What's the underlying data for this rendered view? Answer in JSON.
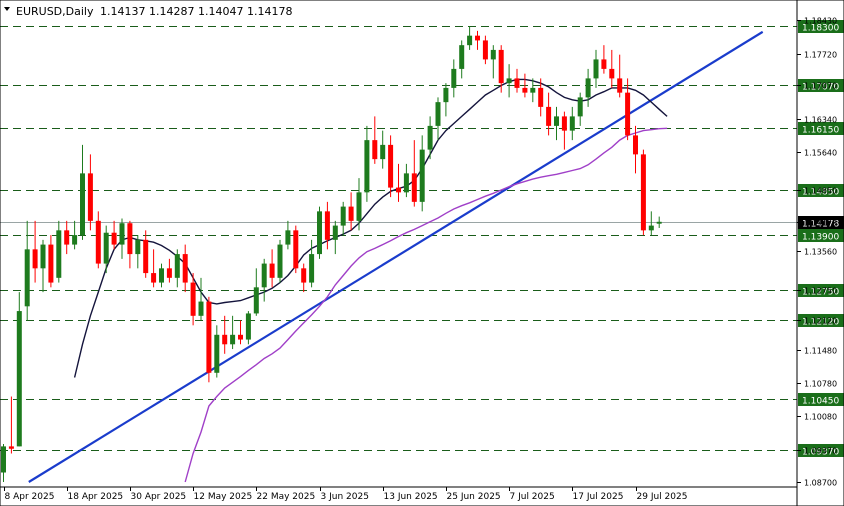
{
  "header": {
    "symbol": "EURUSD,Daily",
    "ohlc": "1.14137 1.14287 1.14047 1.14178"
  },
  "colors": {
    "bull": "#1e7b1e",
    "bear": "#ff0000",
    "grid": "#1a5c1a",
    "fast_ma": "#14143c",
    "slow_ma": "#a040c8",
    "trendline": "#1a3ccc",
    "level_bg": "#1a6e1a",
    "current_bg": "#000000"
  },
  "chart_data": {
    "type": "candlestick",
    "y_range": [
      1.087,
      1.1843
    ],
    "y_ticks": [
      "1.18430",
      "1.17720",
      "1.17070",
      "1.16340",
      "1.15640",
      "1.14850",
      "1.14178",
      "1.13560",
      "1.12750",
      "1.12120",
      "1.11480",
      "1.10780",
      "1.10080",
      "1.09370",
      "1.08700"
    ],
    "levels": [
      {
        "price": 1.183,
        "label": "1.18300"
      },
      {
        "price": 1.1707,
        "label": "1.17070"
      },
      {
        "price": 1.1615,
        "label": "1.16150"
      },
      {
        "price": 1.1485,
        "label": "1.14850"
      },
      {
        "price": 1.139,
        "label": "1.13900"
      },
      {
        "price": 1.1275,
        "label": "1.12750"
      },
      {
        "price": 1.1212,
        "label": "1.12120"
      },
      {
        "price": 1.1045,
        "label": "1.10450"
      },
      {
        "price": 1.0937,
        "label": "1.09370"
      }
    ],
    "current_price": {
      "price": 1.14178,
      "label": "1.14178"
    },
    "x_labels": [
      "8 Apr 2025",
      "18 Apr 2025",
      "30 Apr 2025",
      "12 May 2025",
      "22 May 2025",
      "3 Jun 2025",
      "13 Jun 2025",
      "25 Jun 2025",
      "7 Jul 2025",
      "17 Jul 2025",
      "29 Jul 2025"
    ],
    "x_label_bars": [
      0,
      8,
      16,
      24,
      32,
      40,
      48,
      56,
      64,
      72,
      80
    ],
    "candles": [
      {
        "o": 1.089,
        "h": 1.095,
        "l": 1.087,
        "c": 1.0945
      },
      {
        "o": 1.0945,
        "h": 1.105,
        "l": 1.093,
        "c": 1.094
      },
      {
        "o": 1.0945,
        "h": 1.127,
        "l": 1.0945,
        "c": 1.123
      },
      {
        "o": 1.124,
        "h": 1.142,
        "l": 1.121,
        "c": 1.136
      },
      {
        "o": 1.136,
        "h": 1.142,
        "l": 1.129,
        "c": 1.132
      },
      {
        "o": 1.132,
        "h": 1.138,
        "l": 1.127,
        "c": 1.137
      },
      {
        "o": 1.137,
        "h": 1.139,
        "l": 1.128,
        "c": 1.129
      },
      {
        "o": 1.13,
        "h": 1.142,
        "l": 1.129,
        "c": 1.14
      },
      {
        "o": 1.14,
        "h": 1.142,
        "l": 1.135,
        "c": 1.137
      },
      {
        "o": 1.137,
        "h": 1.142,
        "l": 1.136,
        "c": 1.139
      },
      {
        "o": 1.139,
        "h": 1.158,
        "l": 1.138,
        "c": 1.152
      },
      {
        "o": 1.152,
        "h": 1.156,
        "l": 1.14,
        "c": 1.142
      },
      {
        "o": 1.142,
        "h": 1.144,
        "l": 1.132,
        "c": 1.133
      },
      {
        "o": 1.133,
        "h": 1.141,
        "l": 1.131,
        "c": 1.1395
      },
      {
        "o": 1.1395,
        "h": 1.142,
        "l": 1.136,
        "c": 1.137
      },
      {
        "o": 1.137,
        "h": 1.1425,
        "l": 1.134,
        "c": 1.1415
      },
      {
        "o": 1.1415,
        "h": 1.142,
        "l": 1.132,
        "c": 1.135
      },
      {
        "o": 1.135,
        "h": 1.139,
        "l": 1.132,
        "c": 1.138
      },
      {
        "o": 1.138,
        "h": 1.14,
        "l": 1.13,
        "c": 1.131
      },
      {
        "o": 1.131,
        "h": 1.136,
        "l": 1.128,
        "c": 1.129
      },
      {
        "o": 1.129,
        "h": 1.133,
        "l": 1.128,
        "c": 1.132
      },
      {
        "o": 1.132,
        "h": 1.134,
        "l": 1.129,
        "c": 1.13
      },
      {
        "o": 1.13,
        "h": 1.136,
        "l": 1.128,
        "c": 1.135
      },
      {
        "o": 1.135,
        "h": 1.137,
        "l": 1.127,
        "c": 1.129
      },
      {
        "o": 1.129,
        "h": 1.131,
        "l": 1.12,
        "c": 1.122
      },
      {
        "o": 1.122,
        "h": 1.13,
        "l": 1.121,
        "c": 1.125
      },
      {
        "o": 1.125,
        "h": 1.126,
        "l": 1.108,
        "c": 1.11
      },
      {
        "o": 1.11,
        "h": 1.12,
        "l": 1.109,
        "c": 1.118
      },
      {
        "o": 1.118,
        "h": 1.122,
        "l": 1.114,
        "c": 1.116
      },
      {
        "o": 1.116,
        "h": 1.122,
        "l": 1.115,
        "c": 1.118
      },
      {
        "o": 1.118,
        "h": 1.121,
        "l": 1.116,
        "c": 1.117
      },
      {
        "o": 1.117,
        "h": 1.123,
        "l": 1.116,
        "c": 1.1225
      },
      {
        "o": 1.1225,
        "h": 1.132,
        "l": 1.122,
        "c": 1.128
      },
      {
        "o": 1.128,
        "h": 1.134,
        "l": 1.125,
        "c": 1.133
      },
      {
        "o": 1.133,
        "h": 1.136,
        "l": 1.128,
        "c": 1.13
      },
      {
        "o": 1.13,
        "h": 1.138,
        "l": 1.129,
        "c": 1.137
      },
      {
        "o": 1.137,
        "h": 1.142,
        "l": 1.136,
        "c": 1.14
      },
      {
        "o": 1.14,
        "h": 1.141,
        "l": 1.131,
        "c": 1.132
      },
      {
        "o": 1.132,
        "h": 1.133,
        "l": 1.127,
        "c": 1.129
      },
      {
        "o": 1.129,
        "h": 1.138,
        "l": 1.128,
        "c": 1.135
      },
      {
        "o": 1.135,
        "h": 1.145,
        "l": 1.134,
        "c": 1.144
      },
      {
        "o": 1.144,
        "h": 1.146,
        "l": 1.136,
        "c": 1.138
      },
      {
        "o": 1.138,
        "h": 1.142,
        "l": 1.135,
        "c": 1.141
      },
      {
        "o": 1.141,
        "h": 1.146,
        "l": 1.139,
        "c": 1.145
      },
      {
        "o": 1.145,
        "h": 1.148,
        "l": 1.14,
        "c": 1.142
      },
      {
        "o": 1.142,
        "h": 1.151,
        "l": 1.14,
        "c": 1.148
      },
      {
        "o": 1.148,
        "h": 1.162,
        "l": 1.146,
        "c": 1.159
      },
      {
        "o": 1.159,
        "h": 1.164,
        "l": 1.154,
        "c": 1.155
      },
      {
        "o": 1.155,
        "h": 1.161,
        "l": 1.153,
        "c": 1.158
      },
      {
        "o": 1.158,
        "h": 1.16,
        "l": 1.147,
        "c": 1.149
      },
      {
        "o": 1.149,
        "h": 1.154,
        "l": 1.146,
        "c": 1.148
      },
      {
        "o": 1.148,
        "h": 1.154,
        "l": 1.147,
        "c": 1.152
      },
      {
        "o": 1.152,
        "h": 1.159,
        "l": 1.145,
        "c": 1.146
      },
      {
        "o": 1.146,
        "h": 1.16,
        "l": 1.144,
        "c": 1.157
      },
      {
        "o": 1.157,
        "h": 1.164,
        "l": 1.155,
        "c": 1.162
      },
      {
        "o": 1.162,
        "h": 1.168,
        "l": 1.159,
        "c": 1.167
      },
      {
        "o": 1.167,
        "h": 1.171,
        "l": 1.164,
        "c": 1.17
      },
      {
        "o": 1.17,
        "h": 1.176,
        "l": 1.168,
        "c": 1.174
      },
      {
        "o": 1.174,
        "h": 1.18,
        "l": 1.172,
        "c": 1.179
      },
      {
        "o": 1.179,
        "h": 1.183,
        "l": 1.178,
        "c": 1.181
      },
      {
        "o": 1.181,
        "h": 1.182,
        "l": 1.178,
        "c": 1.18
      },
      {
        "o": 1.18,
        "h": 1.181,
        "l": 1.175,
        "c": 1.176
      },
      {
        "o": 1.176,
        "h": 1.179,
        "l": 1.172,
        "c": 1.178
      },
      {
        "o": 1.178,
        "h": 1.179,
        "l": 1.169,
        "c": 1.171
      },
      {
        "o": 1.171,
        "h": 1.175,
        "l": 1.168,
        "c": 1.172
      },
      {
        "o": 1.172,
        "h": 1.174,
        "l": 1.169,
        "c": 1.17
      },
      {
        "o": 1.17,
        "h": 1.173,
        "l": 1.168,
        "c": 1.169
      },
      {
        "o": 1.169,
        "h": 1.172,
        "l": 1.167,
        "c": 1.17
      },
      {
        "o": 1.17,
        "h": 1.172,
        "l": 1.164,
        "c": 1.166
      },
      {
        "o": 1.166,
        "h": 1.169,
        "l": 1.16,
        "c": 1.162
      },
      {
        "o": 1.162,
        "h": 1.166,
        "l": 1.159,
        "c": 1.164
      },
      {
        "o": 1.164,
        "h": 1.165,
        "l": 1.157,
        "c": 1.161
      },
      {
        "o": 1.161,
        "h": 1.166,
        "l": 1.159,
        "c": 1.164
      },
      {
        "o": 1.164,
        "h": 1.169,
        "l": 1.162,
        "c": 1.168
      },
      {
        "o": 1.168,
        "h": 1.174,
        "l": 1.166,
        "c": 1.172
      },
      {
        "o": 1.172,
        "h": 1.178,
        "l": 1.17,
        "c": 1.176
      },
      {
        "o": 1.176,
        "h": 1.179,
        "l": 1.173,
        "c": 1.174
      },
      {
        "o": 1.174,
        "h": 1.178,
        "l": 1.17,
        "c": 1.172
      },
      {
        "o": 1.172,
        "h": 1.177,
        "l": 1.168,
        "c": 1.169
      },
      {
        "o": 1.169,
        "h": 1.172,
        "l": 1.159,
        "c": 1.16
      },
      {
        "o": 1.16,
        "h": 1.162,
        "l": 1.152,
        "c": 1.156
      },
      {
        "o": 1.156,
        "h": 1.157,
        "l": 1.139,
        "c": 1.14
      },
      {
        "o": 1.14,
        "h": 1.144,
        "l": 1.139,
        "c": 1.141
      },
      {
        "o": 1.1414,
        "h": 1.1429,
        "l": 1.1405,
        "c": 1.1418
      }
    ],
    "fast_ma": {
      "period": 10,
      "values": [
        null,
        null,
        null,
        null,
        null,
        null,
        null,
        null,
        null,
        1.109,
        1.116,
        1.122,
        1.127,
        1.132,
        1.136,
        1.138,
        1.1385,
        1.138,
        1.1378,
        1.1375,
        1.1368,
        1.1358,
        1.1345,
        1.133,
        1.13,
        1.127,
        1.1248,
        1.1245,
        1.1248,
        1.125,
        1.1252,
        1.1258,
        1.1264,
        1.127,
        1.1278,
        1.129,
        1.1305,
        1.1325,
        1.1348,
        1.1362,
        1.137,
        1.1378,
        1.1385,
        1.1392,
        1.14,
        1.1415,
        1.1435,
        1.1455,
        1.147,
        1.1482,
        1.1488,
        1.1493,
        1.1505,
        1.153,
        1.156,
        1.159,
        1.161,
        1.1625,
        1.164,
        1.1655,
        1.167,
        1.1685,
        1.1695,
        1.1705,
        1.1713,
        1.1718,
        1.1718,
        1.1715,
        1.171,
        1.1702,
        1.169,
        1.168,
        1.1675,
        1.1672,
        1.1675,
        1.1685,
        1.1692,
        1.17,
        1.17,
        1.17,
        1.1695,
        1.1685,
        1.167,
        1.1655,
        1.164
      ]
    },
    "slow_ma": {
      "period": 50,
      "values": [
        null,
        null,
        null,
        null,
        null,
        null,
        null,
        null,
        null,
        null,
        null,
        null,
        null,
        null,
        null,
        null,
        null,
        null,
        null,
        null,
        null,
        null,
        null,
        1.087,
        1.093,
        1.0975,
        1.103,
        1.105,
        1.1068,
        1.108,
        1.1092,
        1.1105,
        1.1117,
        1.113,
        1.114,
        1.1152,
        1.117,
        1.1188,
        1.1205,
        1.1222,
        1.124,
        1.126,
        1.1285,
        1.1305,
        1.1325,
        1.1342,
        1.1355,
        1.1362,
        1.137,
        1.1378,
        1.1387,
        1.1395,
        1.1402,
        1.141,
        1.1418,
        1.1426,
        1.1436,
        1.1445,
        1.1452,
        1.1458,
        1.1465,
        1.1472,
        1.1478,
        1.1485,
        1.1492,
        1.1498,
        1.1503,
        1.1508,
        1.1512,
        1.1515,
        1.1518,
        1.1522,
        1.1526,
        1.153,
        1.1538,
        1.155,
        1.1563,
        1.1575,
        1.159,
        1.16,
        1.1605,
        1.161,
        1.1612,
        1.1614,
        1.1615
      ]
    },
    "trendline": {
      "from": {
        "bar": 3.2,
        "price": 1.087
      },
      "to": {
        "bar": 96.1,
        "price": 1.1818
      }
    }
  }
}
